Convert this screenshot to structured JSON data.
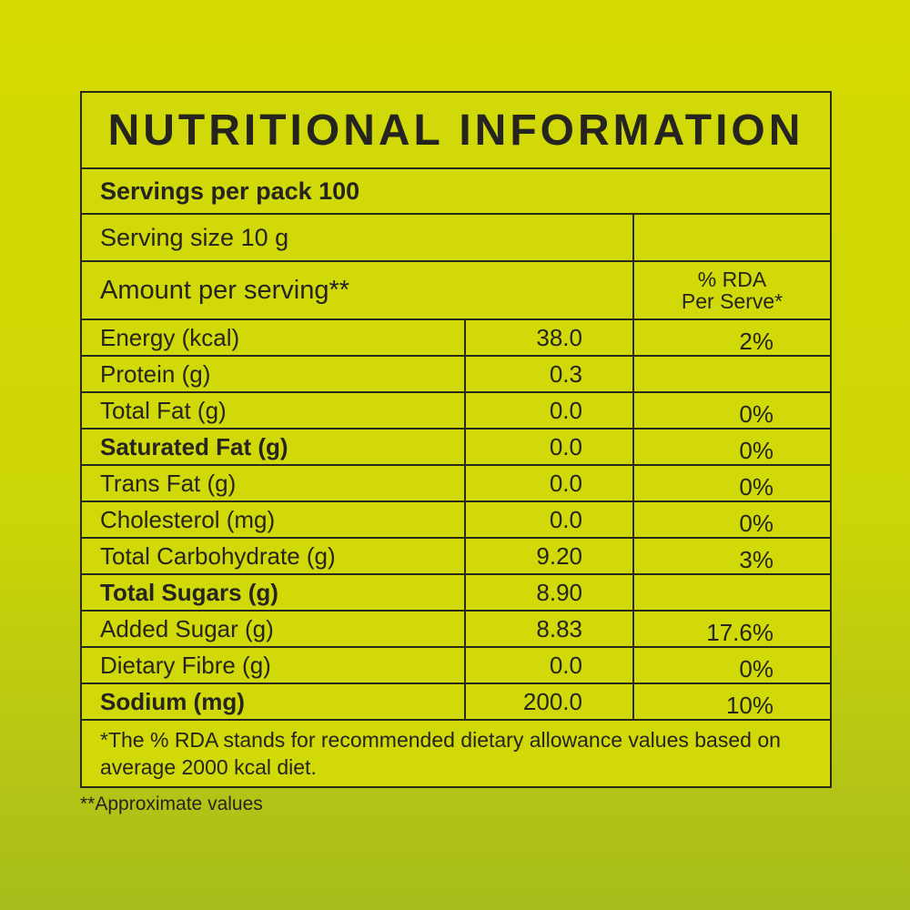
{
  "title": "NUTRITIONAL INFORMATION",
  "servings_per_pack": "Servings per pack 100",
  "serving_size": "Serving size 10 g",
  "amount_header": "Amount per serving**",
  "rda_header": [
    "% RDA",
    "Per Serve*"
  ],
  "rows": [
    {
      "name": "Energy (kcal)",
      "value": "38.0",
      "rda": "2%",
      "bold": false
    },
    {
      "name": "Protein (g)",
      "value": "0.3",
      "rda": "",
      "bold": false
    },
    {
      "name": "Total Fat (g)",
      "value": "0.0",
      "rda": "0%",
      "bold": false
    },
    {
      "name": "Saturated Fat (g)",
      "value": "0.0",
      "rda": "0%",
      "bold": true
    },
    {
      "name": "Trans Fat (g)",
      "value": "0.0",
      "rda": "0%",
      "bold": false
    },
    {
      "name": "Cholesterol (mg)",
      "value": "0.0",
      "rda": "0%",
      "bold": false
    },
    {
      "name": "Total Carbohydrate (g)",
      "value": "9.20",
      "rda": "3%",
      "bold": false
    },
    {
      "name": "Total Sugars (g)",
      "value": "8.90",
      "rda": "",
      "bold": true
    },
    {
      "name": "Added  Sugar (g)",
      "value": "8.83",
      "rda": "17.6%",
      "bold": false
    },
    {
      "name": "Dietary Fibre (g)",
      "value": "0.0",
      "rda": "0%",
      "bold": false
    },
    {
      "name": "Sodium (mg)",
      "value": "200.0",
      "rda": "10%",
      "bold": true
    }
  ],
  "footnote": "*The % RDA stands for recommended dietary allowance values based on average 2000 kcal diet.",
  "approx_note": "**Approximate values",
  "colors": {
    "background_top": "#d4da00",
    "background_bottom": "#a8bd1c",
    "table_fill": "#d1d908",
    "text": "#26241f"
  }
}
